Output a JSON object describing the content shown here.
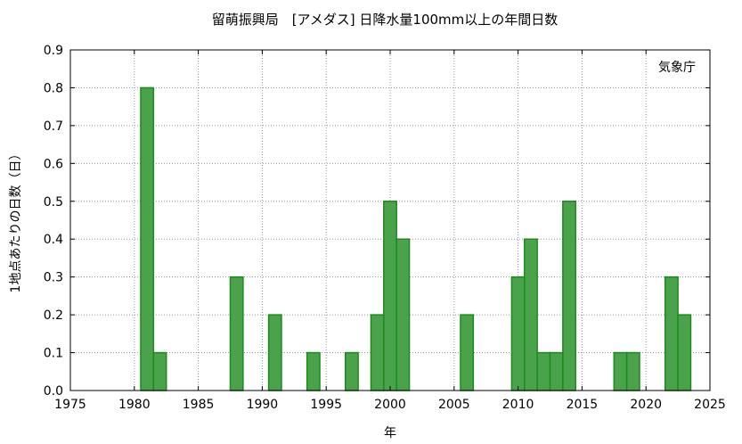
{
  "chart_data": {
    "type": "bar",
    "title": "留萌振興局　[アメダス] 日降水量100mm以上の年間日数",
    "annotation": "気象庁",
    "xlabel": "年",
    "ylabel": "1地点あたりの日数（日）",
    "xlim": [
      1975,
      2025
    ],
    "ylim": [
      0,
      0.9
    ],
    "x_ticks": [
      1975,
      1980,
      1985,
      1990,
      1995,
      2000,
      2005,
      2010,
      2015,
      2020,
      2025
    ],
    "y_ticks": [
      "0.0",
      "0.1",
      "0.2",
      "0.3",
      "0.4",
      "0.5",
      "0.6",
      "0.7",
      "0.8",
      "0.9"
    ],
    "grid": true,
    "bar_color": "#4aa34a",
    "bar_edge_color": "#1e8a1e",
    "x": [
      1981,
      1982,
      1988,
      1991,
      1994,
      1997,
      1999,
      2000,
      2001,
      2006,
      2010,
      2011,
      2012,
      2013,
      2014,
      2018,
      2019,
      2022,
      2023
    ],
    "values": [
      0.8,
      0.1,
      0.3,
      0.2,
      0.1,
      0.1,
      0.2,
      0.5,
      0.4,
      0.2,
      0.3,
      0.4,
      0.1,
      0.1,
      0.5,
      0.1,
      0.1,
      0.3,
      0.2
    ]
  }
}
